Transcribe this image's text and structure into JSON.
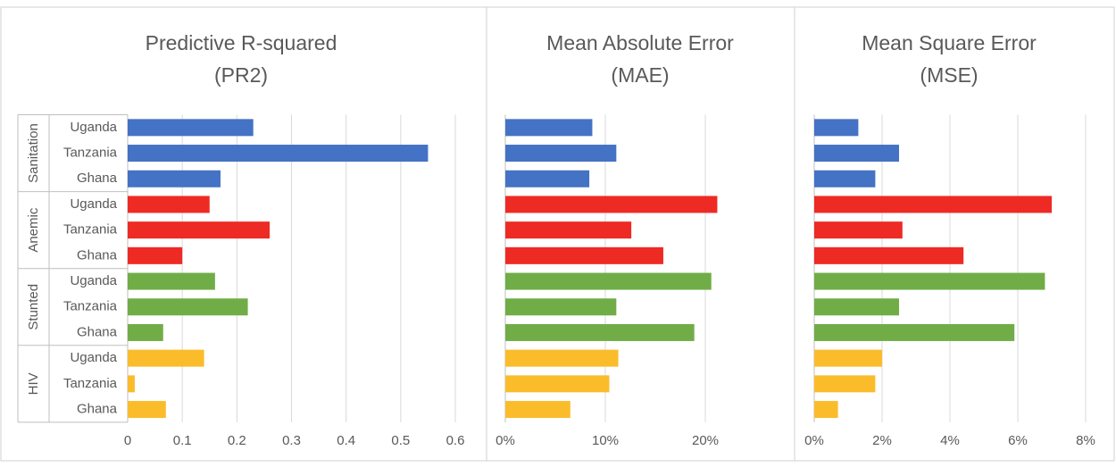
{
  "chart_data": [
    {
      "type": "bar",
      "title": "Predictive R-squared",
      "subtitle": "(PR2)",
      "xlim": [
        0,
        0.6
      ],
      "xticks": [
        0,
        0.1,
        0.2,
        0.3,
        0.4,
        0.5,
        0.6
      ],
      "grid": true,
      "series": [
        {
          "name": "Sanitation",
          "color": "#4472c4",
          "categories": [
            "Uganda",
            "Tanzania",
            "Ghana"
          ],
          "values": [
            0.23,
            0.55,
            0.17
          ]
        },
        {
          "name": "Anemic",
          "color": "#ee2a24",
          "categories": [
            "Uganda",
            "Tanzania",
            "Ghana"
          ],
          "values": [
            0.15,
            0.26,
            0.1
          ]
        },
        {
          "name": "Stunted",
          "color": "#70ad47",
          "categories": [
            "Uganda",
            "Tanzania",
            "Ghana"
          ],
          "values": [
            0.16,
            0.22,
            0.065
          ]
        },
        {
          "name": "HIV",
          "color": "#fbbc2c",
          "categories": [
            "Uganda",
            "Tanzania",
            "Ghana"
          ],
          "values": [
            0.14,
            0.013,
            0.07
          ]
        }
      ]
    },
    {
      "type": "bar",
      "title": "Mean Absolute Error",
      "subtitle": "(MAE)",
      "xlim": [
        0,
        25
      ],
      "xticks": [
        {
          "value": 0,
          "label": "0%"
        },
        {
          "value": 10,
          "label": "10%"
        },
        {
          "value": 20,
          "label": "20%"
        }
      ],
      "grid": true,
      "series": [
        {
          "color": "#4472c4",
          "values": [
            8.7,
            11.1,
            8.4
          ]
        },
        {
          "color": "#ee2a24",
          "values": [
            21.2,
            12.6,
            15.8
          ]
        },
        {
          "color": "#70ad47",
          "values": [
            20.6,
            11.1,
            18.9
          ]
        },
        {
          "color": "#fbbc2c",
          "values": [
            11.3,
            10.4,
            6.5
          ]
        }
      ]
    },
    {
      "type": "bar",
      "title": "Mean Square Error",
      "subtitle": "(MSE)",
      "xlim": [
        0,
        8
      ],
      "xticks": [
        {
          "value": 0,
          "label": "0%"
        },
        {
          "value": 2,
          "label": "2%"
        },
        {
          "value": 4,
          "label": "4%"
        },
        {
          "value": 6,
          "label": "6%"
        },
        {
          "value": 8,
          "label": "8%"
        }
      ],
      "grid": true,
      "series": [
        {
          "color": "#4472c4",
          "values": [
            1.3,
            2.5,
            1.8
          ]
        },
        {
          "color": "#ee2a24",
          "values": [
            7.0,
            2.6,
            4.4
          ]
        },
        {
          "color": "#70ad47",
          "values": [
            6.8,
            2.5,
            5.9
          ]
        },
        {
          "color": "#fbbc2c",
          "values": [
            2.0,
            1.8,
            0.7
          ]
        }
      ]
    }
  ]
}
